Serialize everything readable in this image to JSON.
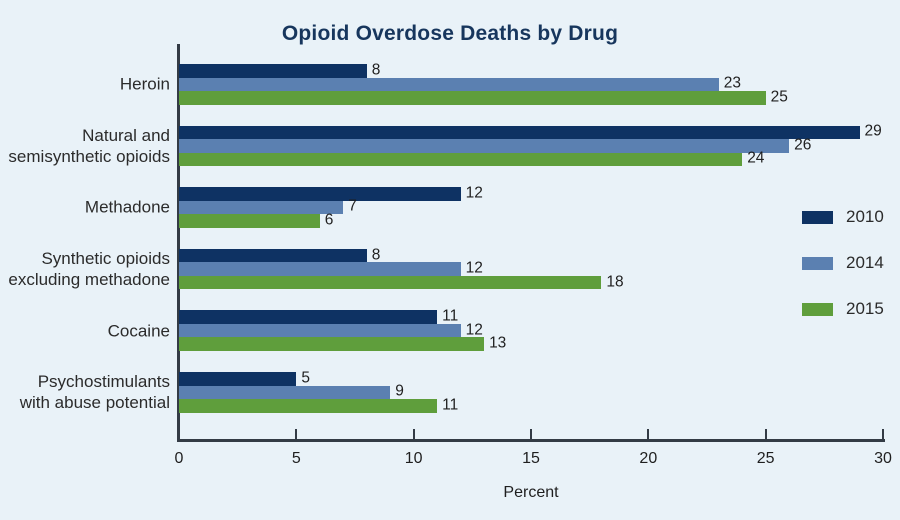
{
  "title": "Opioid Overdose Deaths by Drug",
  "chart_data": {
    "type": "bar",
    "orientation": "horizontal",
    "title": "Opioid Overdose Deaths by Drug",
    "categories": [
      [
        "Heroin"
      ],
      [
        "Natural and",
        "semisynthetic opioids"
      ],
      [
        "Methadone"
      ],
      [
        "Synthetic opioids",
        "excluding methadone"
      ],
      [
        "Cocaine"
      ],
      [
        "Psychostimulants",
        "with abuse potential"
      ]
    ],
    "series": [
      {
        "name": "2010",
        "color": "#0E3263",
        "values": [
          8,
          29,
          12,
          8,
          11,
          5
        ]
      },
      {
        "name": "2014",
        "color": "#5B80B1",
        "values": [
          23,
          26,
          7,
          12,
          12,
          9
        ]
      },
      {
        "name": "2015",
        "color": "#5F9E3C",
        "values": [
          25,
          24,
          6,
          18,
          13,
          11
        ]
      }
    ],
    "xlabel": "Percent",
    "xlim": [
      0,
      30
    ],
    "xticks": [
      0,
      5,
      10,
      15,
      20,
      25,
      30
    ],
    "legend_position": "right",
    "grid": false,
    "value_labels_shown": true
  },
  "colors": {
    "background": "#E9F2F8",
    "axis": "#333B45",
    "text": "#1F1F1F",
    "category_text": "#2B2B2B",
    "title": "#17365D",
    "series_2010": "#0E3263",
    "series_2014": "#5B80B1",
    "series_2015": "#5F9E3C"
  }
}
